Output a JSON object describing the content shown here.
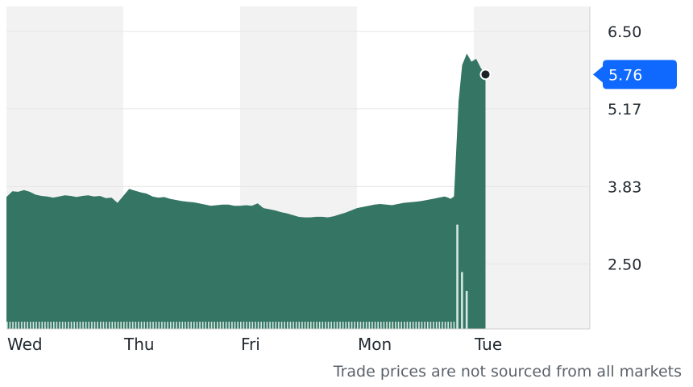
{
  "chart_data": {
    "type": "area",
    "x_labels": [
      "Wed",
      "Thu",
      "Fri",
      "Mon",
      "Tue"
    ],
    "y_ticks": [
      "6.50",
      "5.17",
      "3.83",
      "2.50"
    ],
    "y_tick_values": [
      6.5,
      5.17,
      3.83,
      2.5
    ],
    "ylim": [
      1.38,
      6.93
    ],
    "current_price": "5.76",
    "current_price_value": 5.76,
    "grid": true,
    "colors": {
      "area": "#347564",
      "badge": "#0f69ff",
      "band": "#f2f2f2",
      "gridline": "#e6e6e6",
      "volume": "#d5e7df",
      "marker": "#1d2228"
    },
    "price_series": [
      {
        "t": 0.0,
        "v": 3.65
      },
      {
        "t": 0.05,
        "v": 3.75
      },
      {
        "t": 0.1,
        "v": 3.74
      },
      {
        "t": 0.15,
        "v": 3.77
      },
      {
        "t": 0.2,
        "v": 3.74
      },
      {
        "t": 0.25,
        "v": 3.69
      },
      {
        "t": 0.3,
        "v": 3.67
      },
      {
        "t": 0.35,
        "v": 3.66
      },
      {
        "t": 0.4,
        "v": 3.64
      },
      {
        "t": 0.45,
        "v": 3.66
      },
      {
        "t": 0.5,
        "v": 3.68
      },
      {
        "t": 0.55,
        "v": 3.67
      },
      {
        "t": 0.6,
        "v": 3.65
      },
      {
        "t": 0.65,
        "v": 3.67
      },
      {
        "t": 0.7,
        "v": 3.68
      },
      {
        "t": 0.75,
        "v": 3.66
      },
      {
        "t": 0.8,
        "v": 3.67
      },
      {
        "t": 0.85,
        "v": 3.63
      },
      {
        "t": 0.9,
        "v": 3.64
      },
      {
        "t": 0.95,
        "v": 3.55
      },
      {
        "t": 1.0,
        "v": 3.67
      },
      {
        "t": 1.05,
        "v": 3.79
      },
      {
        "t": 1.1,
        "v": 3.76
      },
      {
        "t": 1.15,
        "v": 3.73
      },
      {
        "t": 1.2,
        "v": 3.71
      },
      {
        "t": 1.25,
        "v": 3.66
      },
      {
        "t": 1.3,
        "v": 3.64
      },
      {
        "t": 1.35,
        "v": 3.65
      },
      {
        "t": 1.4,
        "v": 3.62
      },
      {
        "t": 1.45,
        "v": 3.6
      },
      {
        "t": 1.5,
        "v": 3.58
      },
      {
        "t": 1.55,
        "v": 3.57
      },
      {
        "t": 1.6,
        "v": 3.56
      },
      {
        "t": 1.65,
        "v": 3.54
      },
      {
        "t": 1.7,
        "v": 3.52
      },
      {
        "t": 1.75,
        "v": 3.5
      },
      {
        "t": 1.8,
        "v": 3.51
      },
      {
        "t": 1.85,
        "v": 3.52
      },
      {
        "t": 1.9,
        "v": 3.52
      },
      {
        "t": 1.95,
        "v": 3.5
      },
      {
        "t": 2.0,
        "v": 3.5
      },
      {
        "t": 2.05,
        "v": 3.51
      },
      {
        "t": 2.1,
        "v": 3.5
      },
      {
        "t": 2.15,
        "v": 3.54
      },
      {
        "t": 2.2,
        "v": 3.46
      },
      {
        "t": 2.25,
        "v": 3.44
      },
      {
        "t": 2.3,
        "v": 3.42
      },
      {
        "t": 2.35,
        "v": 3.39
      },
      {
        "t": 2.4,
        "v": 3.37
      },
      {
        "t": 2.45,
        "v": 3.34
      },
      {
        "t": 2.5,
        "v": 3.31
      },
      {
        "t": 2.55,
        "v": 3.3
      },
      {
        "t": 2.6,
        "v": 3.3
      },
      {
        "t": 2.65,
        "v": 3.31
      },
      {
        "t": 2.7,
        "v": 3.31
      },
      {
        "t": 2.75,
        "v": 3.3
      },
      {
        "t": 2.8,
        "v": 3.32
      },
      {
        "t": 2.85,
        "v": 3.35
      },
      {
        "t": 2.9,
        "v": 3.38
      },
      {
        "t": 2.95,
        "v": 3.42
      },
      {
        "t": 3.0,
        "v": 3.46
      },
      {
        "t": 3.05,
        "v": 3.48
      },
      {
        "t": 3.1,
        "v": 3.5
      },
      {
        "t": 3.15,
        "v": 3.52
      },
      {
        "t": 3.2,
        "v": 3.53
      },
      {
        "t": 3.25,
        "v": 3.52
      },
      {
        "t": 3.3,
        "v": 3.51
      },
      {
        "t": 3.35,
        "v": 3.53
      },
      {
        "t": 3.4,
        "v": 3.55
      },
      {
        "t": 3.45,
        "v": 3.56
      },
      {
        "t": 3.5,
        "v": 3.57
      },
      {
        "t": 3.55,
        "v": 3.58
      },
      {
        "t": 3.6,
        "v": 3.6
      },
      {
        "t": 3.65,
        "v": 3.62
      },
      {
        "t": 3.7,
        "v": 3.64
      },
      {
        "t": 3.75,
        "v": 3.66
      },
      {
        "t": 3.78,
        "v": 3.64
      },
      {
        "t": 3.8,
        "v": 3.62
      },
      {
        "t": 3.83,
        "v": 3.66
      },
      {
        "t": 3.87,
        "v": 5.3
      },
      {
        "t": 3.9,
        "v": 5.92
      },
      {
        "t": 3.94,
        "v": 6.12
      },
      {
        "t": 3.98,
        "v": 5.98
      },
      {
        "t": 4.02,
        "v": 6.03
      },
      {
        "t": 4.06,
        "v": 5.87
      },
      {
        "t": 4.1,
        "v": 5.76
      }
    ],
    "volume_spikes": [
      {
        "t": 3.85,
        "h": 0.55
      },
      {
        "t": 3.89,
        "h": 0.3
      },
      {
        "t": 3.93,
        "h": 0.2
      }
    ]
  },
  "footnote": "Trade prices are not sourced from all markets"
}
